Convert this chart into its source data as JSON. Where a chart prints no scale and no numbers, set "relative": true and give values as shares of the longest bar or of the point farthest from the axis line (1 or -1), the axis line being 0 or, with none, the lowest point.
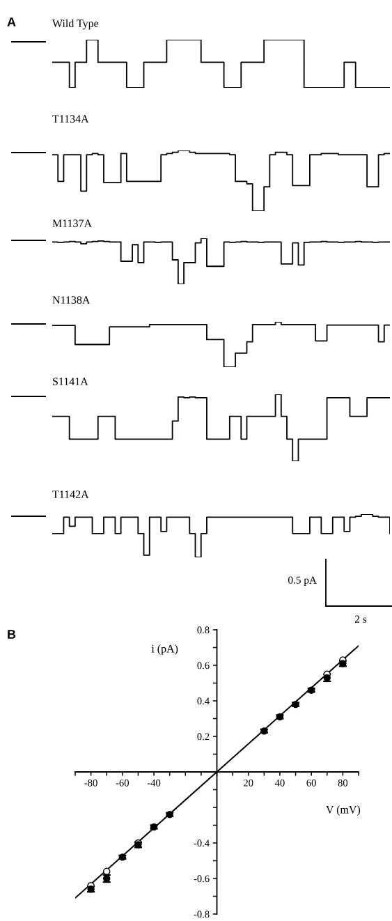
{
  "chart_data": [
    {
      "type": "step",
      "title": "Wild Type",
      "annotations": [
        "A"
      ],
      "relative": true,
      "categories": [
        null,
        null,
        null,
        null,
        null,
        null,
        null,
        null,
        null,
        null,
        null,
        null,
        null,
        null,
        null,
        null,
        null,
        null,
        null,
        null,
        null,
        null,
        null,
        null,
        null,
        null,
        null,
        null,
        null,
        null,
        null,
        null,
        null,
        null,
        null,
        null,
        null,
        null,
        null,
        null,
        null,
        null,
        null,
        null,
        null,
        null,
        null,
        null,
        null,
        null,
        null,
        null,
        null,
        null,
        null,
        null,
        null,
        null,
        null,
        null
      ],
      "series": [
        {
          "color": "#000000",
          "values": [
            0.53,
            0.53,
            0.53,
            0,
            0.53,
            0.53,
            1,
            1,
            0.53,
            0.53,
            0.53,
            0.53,
            0.53,
            0,
            0,
            0,
            0.53,
            0.53,
            0.53,
            0.53,
            1,
            1,
            1,
            1,
            1,
            1,
            0.53,
            0.53,
            0.53,
            0.53,
            0,
            0,
            0,
            0.53,
            0.53,
            0.53,
            0.53,
            1,
            1,
            1,
            1,
            1,
            1,
            1,
            0,
            0,
            0,
            0,
            0,
            0,
            0,
            0.53,
            0.53,
            0,
            0,
            0,
            0,
            0,
            0,
            0
          ]
        }
      ]
    },
    {
      "type": "step",
      "title": "T1134A",
      "relative": true,
      "categories": [
        null,
        null,
        null,
        null,
        null,
        null,
        null,
        null,
        null,
        null,
        null,
        null,
        null,
        null,
        null,
        null,
        null,
        null,
        null,
        null,
        null,
        null,
        null,
        null,
        null,
        null,
        null,
        null,
        null,
        null,
        null,
        null,
        null,
        null,
        null,
        null,
        null,
        null,
        null,
        null,
        null,
        null,
        null,
        null,
        null,
        null,
        null,
        null,
        null,
        null,
        null,
        null,
        null,
        null,
        null,
        null,
        null,
        null,
        null,
        null
      ],
      "series": [
        {
          "color": "#000000",
          "values": [
            0.93,
            0.49,
            0.93,
            0.93,
            0.93,
            0.33,
            0.93,
            0.95,
            0.93,
            0.47,
            0.47,
            0.47,
            0.95,
            0.49,
            0.49,
            0.49,
            0.49,
            0.49,
            0.49,
            0.93,
            0.95,
            0.97,
            1,
            1,
            0.97,
            0.95,
            0.95,
            0.95,
            0.95,
            0.95,
            0.95,
            0.93,
            0.49,
            0.49,
            0.45,
            0,
            0,
            0.4,
            0.93,
            0.97,
            0.97,
            0.93,
            0.42,
            0.42,
            0.42,
            0.93,
            0.93,
            0.95,
            0.95,
            0.95,
            0.93,
            0.93,
            0.93,
            0.93,
            0.93,
            0.4,
            0.4,
            0.93,
            0.95,
            0.95
          ]
        }
      ]
    },
    {
      "type": "step",
      "title": "M1137A",
      "relative": true,
      "categories": [
        null,
        null,
        null,
        null,
        null,
        null,
        null,
        null,
        null,
        null,
        null,
        null,
        null,
        null,
        null,
        null,
        null,
        null,
        null,
        null,
        null,
        null,
        null,
        null,
        null,
        null,
        null,
        null,
        null,
        null,
        null,
        null,
        null,
        null,
        null,
        null,
        null,
        null,
        null,
        null,
        null,
        null,
        null,
        null,
        null,
        null,
        null,
        null,
        null,
        null,
        null,
        null,
        null,
        null,
        null,
        null,
        null,
        null,
        null,
        null
      ],
      "series": [
        {
          "color": "#000000",
          "values": [
            0.92,
            0.91,
            0.92,
            0.93,
            0.92,
            0.88,
            0.92,
            0.93,
            0.94,
            0.93,
            0.92,
            0.92,
            0.5,
            0.5,
            0.86,
            0.47,
            0.92,
            0.92,
            0.91,
            0.92,
            0.92,
            0.53,
            0,
            0.47,
            0.47,
            0.9,
            1,
            0.39,
            0.39,
            0.39,
            0.92,
            0.91,
            0.92,
            0.93,
            0.92,
            0.92,
            0.91,
            0.92,
            0.92,
            0.92,
            0.44,
            0.44,
            0.9,
            0.42,
            0.91,
            0.92,
            0.92,
            0.93,
            0.92,
            0.92,
            0.91,
            0.92,
            0.92,
            0.93,
            0.92,
            0.92,
            0.91,
            0.92,
            0.92,
            0.92
          ]
        }
      ]
    },
    {
      "type": "step",
      "title": "N1138A",
      "relative": true,
      "categories": [
        null,
        null,
        null,
        null,
        null,
        null,
        null,
        null,
        null,
        null,
        null,
        null,
        null,
        null,
        null,
        null,
        null,
        null,
        null,
        null,
        null,
        null,
        null,
        null,
        null,
        null,
        null,
        null,
        null,
        null,
        null,
        null,
        null,
        null,
        null,
        null,
        null,
        null,
        null,
        null,
        null,
        null,
        null,
        null,
        null,
        null,
        null,
        null,
        null,
        null,
        null,
        null,
        null,
        null,
        null,
        null,
        null,
        null,
        null,
        null
      ],
      "series": [
        {
          "color": "#000000",
          "values": [
            0.92,
            0.92,
            0.92,
            0.92,
            0.5,
            0.5,
            0.5,
            0.5,
            0.5,
            0.5,
            0.89,
            0.89,
            0.89,
            0.89,
            0.89,
            0.89,
            0.89,
            0.94,
            0.94,
            0.94,
            0.94,
            0.94,
            0.94,
            0.94,
            0.94,
            0.94,
            0.94,
            0.61,
            0.61,
            0.61,
            0,
            0,
            0.31,
            0.31,
            0.56,
            0.94,
            0.94,
            0.94,
            0.94,
            1,
            0.94,
            0.94,
            0.94,
            0.94,
            0.94,
            0.94,
            0.58,
            0.58,
            0.93,
            0.93,
            0.93,
            0.93,
            0.93,
            0.93,
            0.93,
            0.93,
            0.93,
            0.56,
            0.93,
            0.93
          ]
        }
      ]
    },
    {
      "type": "step",
      "title": "S1141A",
      "relative": true,
      "categories": [
        null,
        null,
        null,
        null,
        null,
        null,
        null,
        null,
        null,
        null,
        null,
        null,
        null,
        null,
        null,
        null,
        null,
        null,
        null,
        null,
        null,
        null,
        null,
        null,
        null,
        null,
        null,
        null,
        null,
        null,
        null,
        null,
        null,
        null,
        null,
        null,
        null,
        null,
        null,
        null,
        null,
        null,
        null,
        null,
        null,
        null,
        null,
        null,
        null,
        null,
        null,
        null,
        null,
        null,
        null,
        null,
        null,
        null,
        null,
        null
      ],
      "series": [
        {
          "color": "#000000",
          "values": [
            0.67,
            0.67,
            0.67,
            0.33,
            0.33,
            0.33,
            0.33,
            0.33,
            0.67,
            0.67,
            0.67,
            0.33,
            0.33,
            0.33,
            0.33,
            0.33,
            0.33,
            0.33,
            0.33,
            0.33,
            0.33,
            0.6,
            0.96,
            0.95,
            0.96,
            0.95,
            0.95,
            0.33,
            0.33,
            0.33,
            0.33,
            0.67,
            0.67,
            0.33,
            0.67,
            0.67,
            0.67,
            0.67,
            0.67,
            1,
            0.67,
            0.33,
            0,
            0.33,
            0.33,
            0.33,
            0.33,
            0.33,
            0.95,
            0.95,
            0.95,
            0.95,
            0.67,
            0.67,
            0.67,
            0.95,
            0.95,
            0.95,
            0.95,
            0.95
          ]
        }
      ]
    },
    {
      "type": "step",
      "title": "T1142A",
      "annotations": [
        "0.5 pA",
        "2 s"
      ],
      "relative": true,
      "categories": [
        null,
        null,
        null,
        null,
        null,
        null,
        null,
        null,
        null,
        null,
        null,
        null,
        null,
        null,
        null,
        null,
        null,
        null,
        null,
        null,
        null,
        null,
        null,
        null,
        null,
        null,
        null,
        null,
        null,
        null,
        null,
        null,
        null,
        null,
        null,
        null,
        null,
        null,
        null,
        null,
        null,
        null,
        null,
        null,
        null,
        null,
        null,
        null,
        null,
        null,
        null,
        null,
        null,
        null,
        null,
        null,
        null,
        null,
        null,
        null
      ],
      "series": [
        {
          "color": "#000000",
          "values": [
            0.55,
            0.55,
            0.93,
            0.72,
            0.93,
            0.93,
            0.93,
            0.55,
            0.55,
            0.93,
            0.93,
            0.55,
            0.93,
            0.93,
            0.93,
            0.55,
            0.05,
            0.93,
            0.93,
            0.6,
            0.93,
            0.93,
            0.93,
            0.93,
            0.55,
            0,
            0.55,
            0.93,
            0.93,
            0.93,
            0.93,
            0.93,
            0.93,
            0.93,
            0.93,
            0.93,
            0.93,
            0.93,
            0.93,
            0.93,
            0.93,
            0.93,
            0.55,
            0.55,
            0.55,
            0.93,
            0.93,
            0.55,
            0.55,
            0.93,
            0.93,
            0.6,
            0.93,
            0.95,
            1,
            1,
            0.95,
            0.93,
            0.93,
            0.55
          ]
        }
      ]
    },
    {
      "type": "scatter",
      "annotations": [
        "B"
      ],
      "xlabel": "V (mV)",
      "ylabel": "i (pA)",
      "xlim": [
        -90,
        90
      ],
      "ylim": [
        -0.8,
        0.8
      ],
      "xticks": [
        {
          "value": -90,
          "label": null
        },
        -80,
        {
          "value": -70,
          "label": null
        },
        -60,
        {
          "value": -50,
          "label": null
        },
        -40,
        {
          "value": -30,
          "label": null
        },
        {
          "value": -20,
          "label": null
        },
        {
          "value": -10,
          "label": null
        },
        {
          "value": 0,
          "label": null
        },
        {
          "value": 10,
          "label": null
        },
        20,
        {
          "value": 30,
          "label": null
        },
        40,
        {
          "value": 50,
          "label": null
        },
        60,
        {
          "value": 70,
          "label": null
        },
        80,
        {
          "value": 90,
          "label": null
        }
      ],
      "yticks": [
        -0.8,
        {
          "value": -0.7,
          "label": null
        },
        -0.6,
        {
          "value": -0.5,
          "label": null
        },
        -0.4,
        {
          "value": -0.3,
          "label": null
        },
        {
          "value": -0.2,
          "label": null
        },
        {
          "value": -0.1,
          "label": null
        },
        {
          "value": 0,
          "label": null
        },
        {
          "value": 0.1,
          "label": null
        },
        0.2,
        {
          "value": 0.3,
          "label": null
        },
        0.4,
        {
          "value": 0.5,
          "label": null
        },
        0.6,
        {
          "value": 0.7,
          "label": null
        },
        0.8
      ],
      "x": [
        -80,
        -70,
        -60,
        -50,
        -40,
        -30,
        30,
        40,
        50,
        60,
        70,
        80
      ],
      "series": [
        {
          "color": "#000000",
          "marker": "circle",
          "values": [
            -0.66,
            -0.6,
            -0.48,
            -0.41,
            -0.31,
            -0.24,
            0.23,
            0.31,
            0.38,
            0.46,
            0.53,
            0.61
          ],
          "errors": [
            0.015,
            0.02,
            0.01,
            0.015,
            0.01,
            0.01,
            0.01,
            0.01,
            0.01,
            0.01,
            0.02,
            0.015
          ]
        },
        {
          "color": "#ffffff",
          "marker": "circle",
          "values": [
            -0.64,
            -0.56,
            null,
            -0.4,
            null,
            null,
            null,
            null,
            null,
            null,
            0.55,
            0.63
          ]
        },
        {
          "type": "line",
          "color": "#000000",
          "x": [
            -90,
            90
          ],
          "values": [
            -0.71,
            0.71
          ]
        }
      ]
    }
  ]
}
